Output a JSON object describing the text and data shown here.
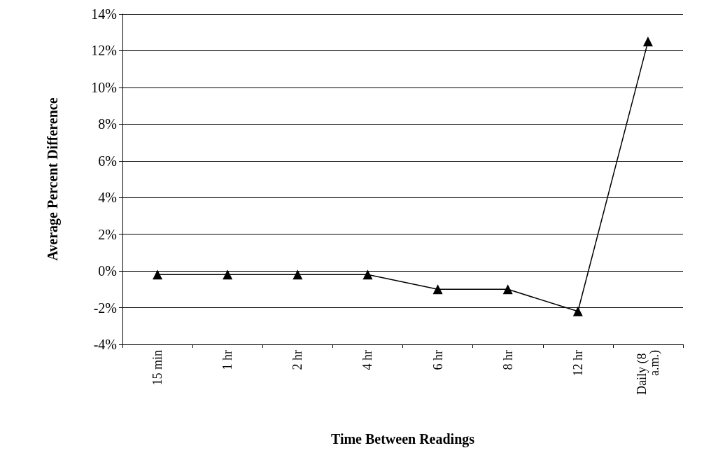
{
  "chart_data": {
    "type": "line",
    "xlabel": "Time Between Readings",
    "ylabel": "Average Percent Difference",
    "categories": [
      "15 min",
      "1 hr",
      "2 hr",
      "4 hr",
      "6 hr",
      "8 hr",
      "12 hr",
      "Daily (8 a.m.)"
    ],
    "series": [
      {
        "color": "#000000",
        "values": [
          -0.2,
          -0.2,
          -0.2,
          -0.2,
          -1.0,
          -1.0,
          -2.2,
          12.5
        ]
      }
    ],
    "ylim": [
      -4,
      14
    ],
    "yticks": [
      {
        "value": -4,
        "label": "-4%"
      },
      {
        "value": -2,
        "label": "-2%"
      },
      {
        "value": 0,
        "label": "0%"
      },
      {
        "value": 2,
        "label": "2%"
      },
      {
        "value": 4,
        "label": "4%"
      },
      {
        "value": 6,
        "label": "6%"
      },
      {
        "value": 8,
        "label": "8%"
      },
      {
        "value": 10,
        "label": "10%"
      },
      {
        "value": 12,
        "label": "12%"
      },
      {
        "value": 14,
        "label": "14%"
      }
    ],
    "grid": "y",
    "marker": "triangle",
    "line_style": "solid"
  }
}
